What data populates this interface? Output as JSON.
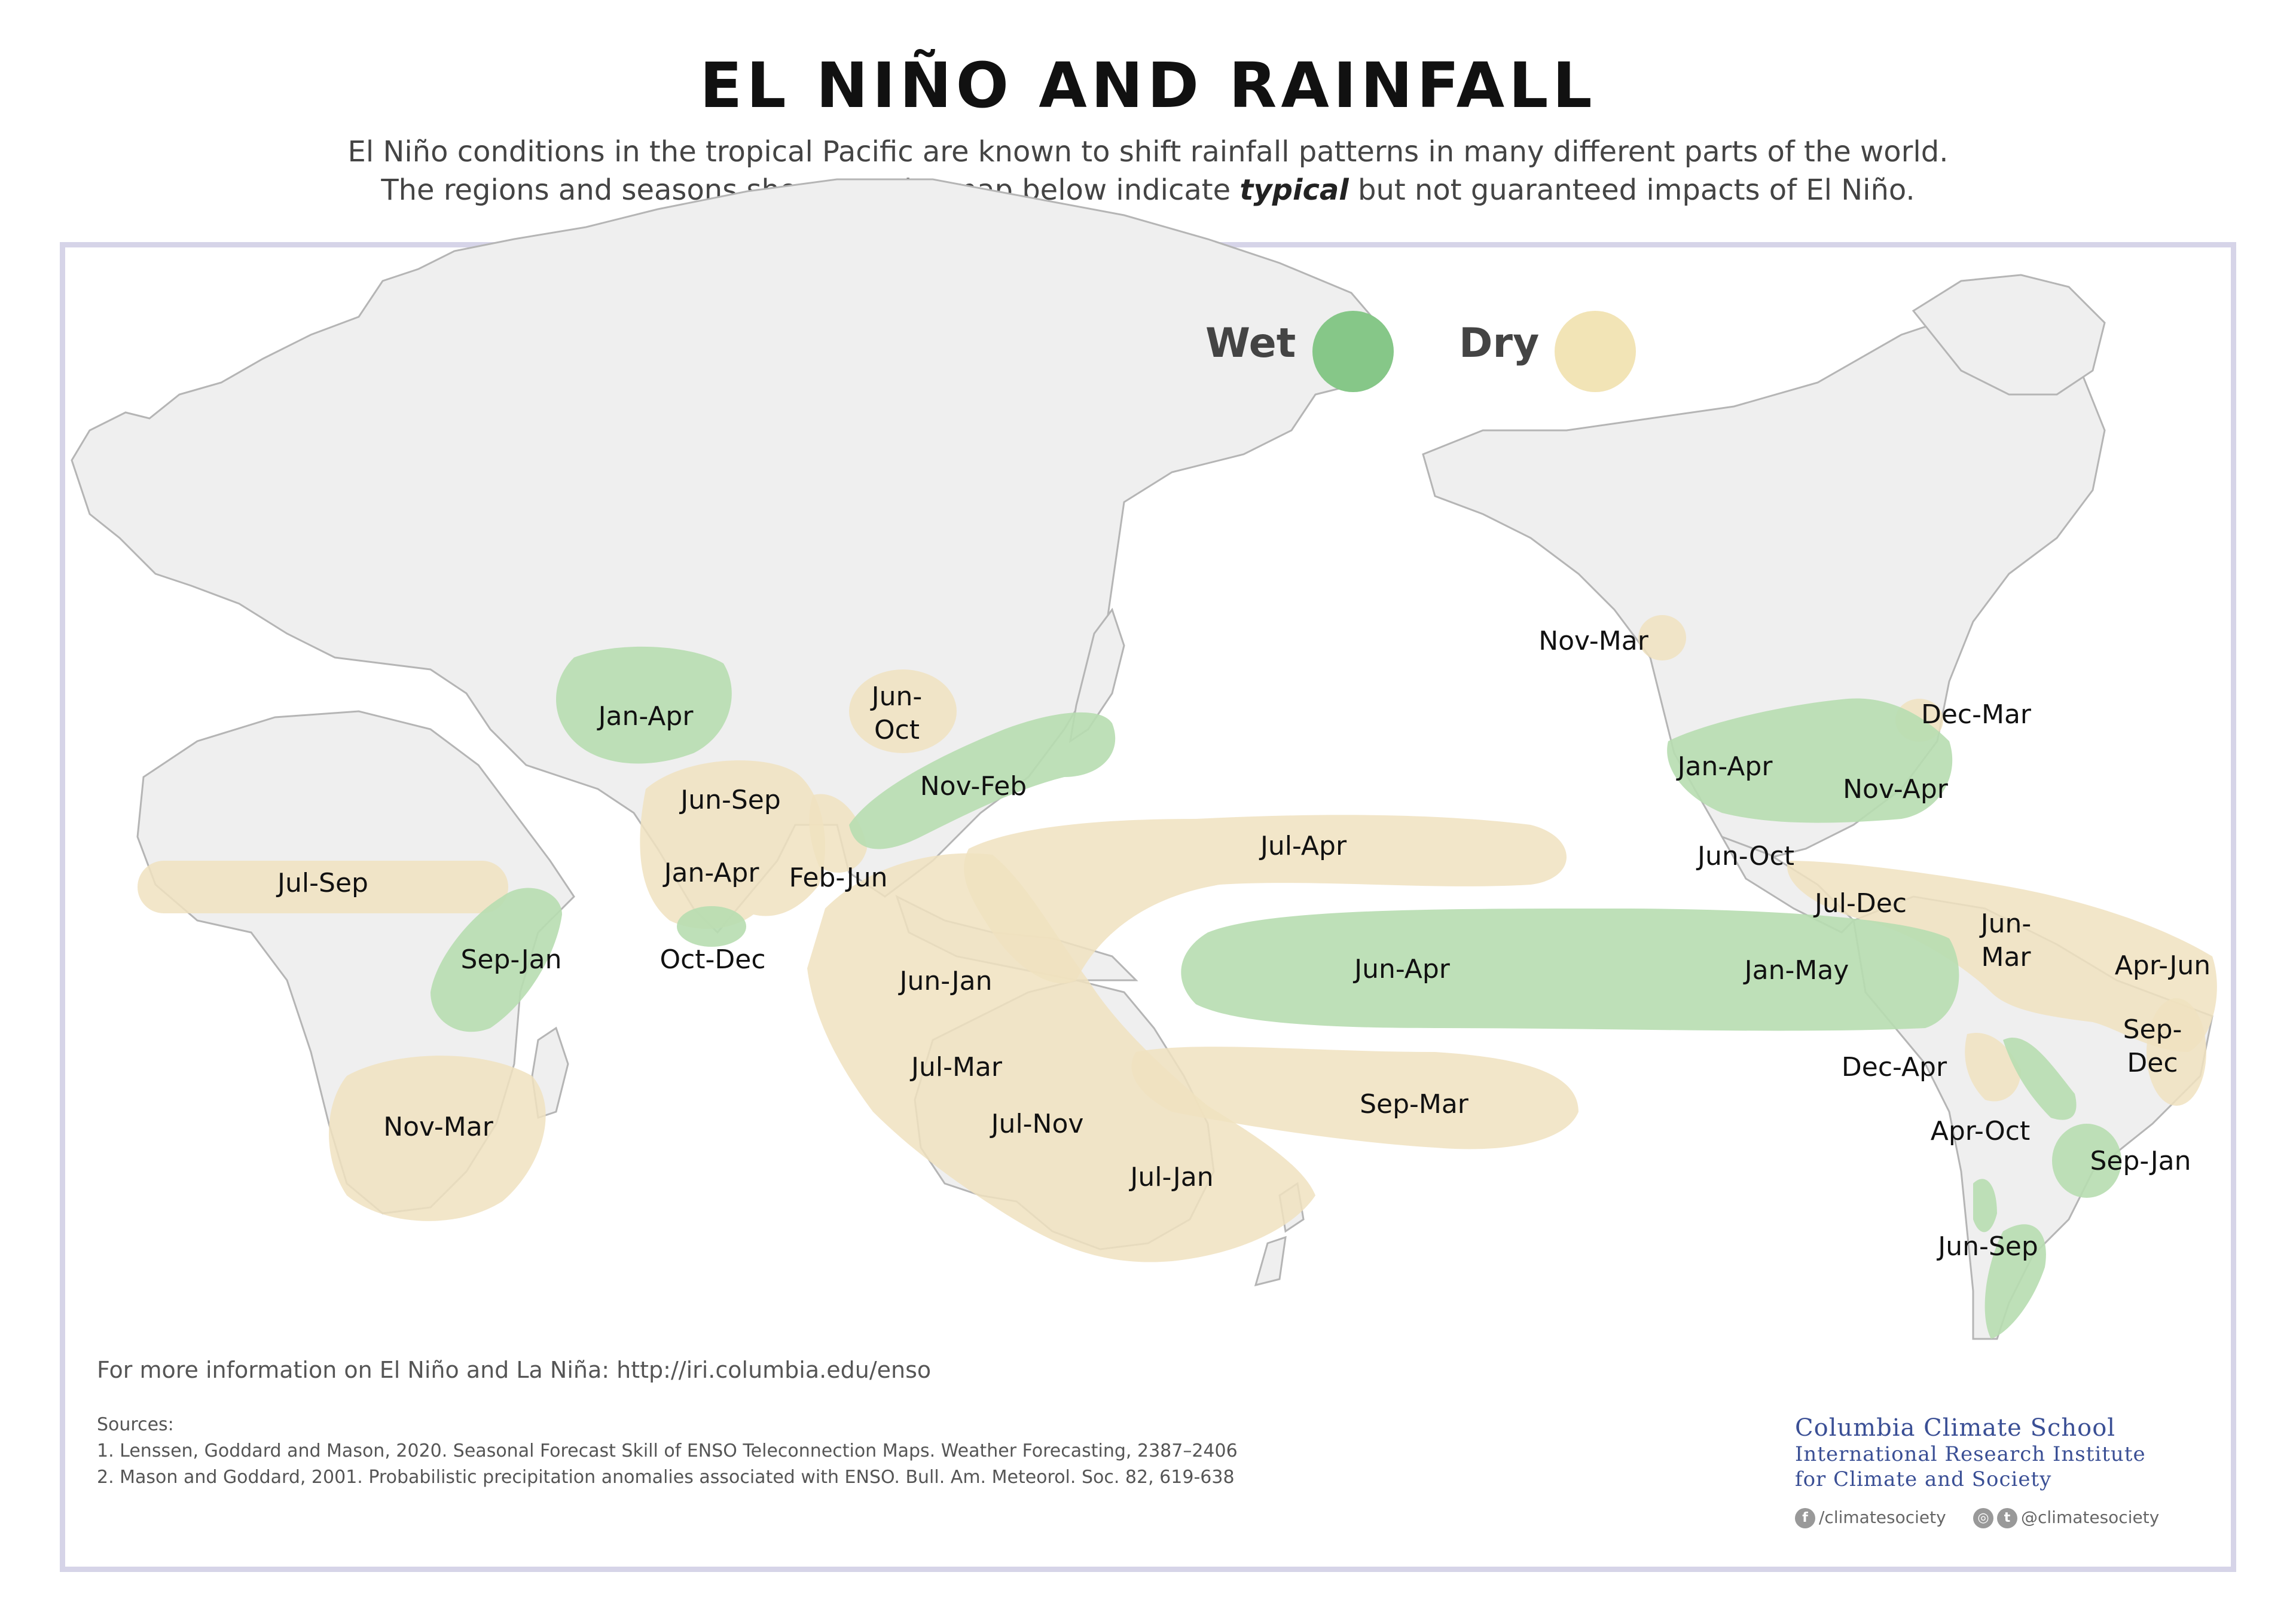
{
  "title": "EL NIÑO AND RAINFALL",
  "subtitle": {
    "line1": "El Niño conditions in the tropical Pacific are known to shift rainfall patterns in many different parts of the world.",
    "line2_before": "The regions and seasons shown on the map below indicate ",
    "line2_emphasis": "typical",
    "line2_after": " but not guaranteed impacts of El Niño."
  },
  "legend": {
    "wet": {
      "label": "Wet",
      "color": "#86c788"
    },
    "dry": {
      "label": "Dry",
      "color": "#f2e4b6"
    }
  },
  "colors": {
    "land": "#efefef",
    "coast": "#b5b5b5",
    "wet_fill": "#b7ddb0",
    "dry_fill": "#f0e2bf"
  },
  "regions": [
    {
      "label": "Jul-Sep",
      "type": "dry"
    },
    {
      "label": "Sep-Jan",
      "type": "wet"
    },
    {
      "label": "Nov-Mar",
      "type": "dry"
    },
    {
      "label": "Jan-Apr",
      "type": "wet"
    },
    {
      "label": "Jun-Sep",
      "type": "dry"
    },
    {
      "label": "Jan-Apr",
      "type": "dry"
    },
    {
      "label": "Oct-Dec",
      "type": "wet"
    },
    {
      "label": "Feb-Jun",
      "type": "dry"
    },
    {
      "label": "Jun-Oct",
      "type": "dry"
    },
    {
      "label": "Nov-Feb",
      "type": "wet"
    },
    {
      "label": "Jun-Jan",
      "type": "dry"
    },
    {
      "label": "Jul-Mar",
      "type": "dry"
    },
    {
      "label": "Jul-Nov",
      "type": "dry"
    },
    {
      "label": "Jul-Jan",
      "type": "dry"
    },
    {
      "label": "Jul-Apr",
      "type": "dry"
    },
    {
      "label": "Sep-Mar",
      "type": "dry"
    },
    {
      "label": "Jun-Apr",
      "type": "wet"
    },
    {
      "label": "Jan-May",
      "type": "wet"
    },
    {
      "label": "Nov-Mar",
      "type": "dry"
    },
    {
      "label": "Jan-Apr",
      "type": "wet"
    },
    {
      "label": "Nov-Apr",
      "type": "wet"
    },
    {
      "label": "Dec-Mar",
      "type": "dry"
    },
    {
      "label": "Jun-Oct",
      "type": "dry"
    },
    {
      "label": "Jul-Dec",
      "type": "dry"
    },
    {
      "label": "Jun-Mar",
      "type": "dry"
    },
    {
      "label": "Apr-Jun",
      "type": "dry"
    },
    {
      "label": "Sep-Dec",
      "type": "dry"
    },
    {
      "label": "Dec-Apr",
      "type": "dry"
    },
    {
      "label": "Apr-Oct",
      "type": "wet"
    },
    {
      "label": "Sep-Jan",
      "type": "wet"
    },
    {
      "label": "Jun-Sep",
      "type": "wet"
    }
  ],
  "footer": {
    "more_info": "For more information on El Niño and La Niña: http://iri.columbia.edu/enso",
    "sources_title": "Sources:",
    "source1": "1. Lenssen, Goddard and Mason, 2020. Seasonal Forecast Skill of ENSO Teleconnection Maps. Weather Forecasting, 2387–2406",
    "source2": "2. Mason and Goddard, 2001. Probabilistic precipitation anomalies associated with ENSO. Bull. Am. Meteorol. Soc. 82, 619-638"
  },
  "logo": {
    "line1": "Columbia Climate School",
    "line2": "International Research Institute",
    "line3": "for Climate and Society"
  },
  "social": {
    "facebook": "/climatesociety",
    "instagram_twitter": "@climatesociety",
    "facebook_icon": "facebook-icon",
    "instagram_icon": "instagram-icon",
    "twitter_icon": "twitter-icon"
  }
}
